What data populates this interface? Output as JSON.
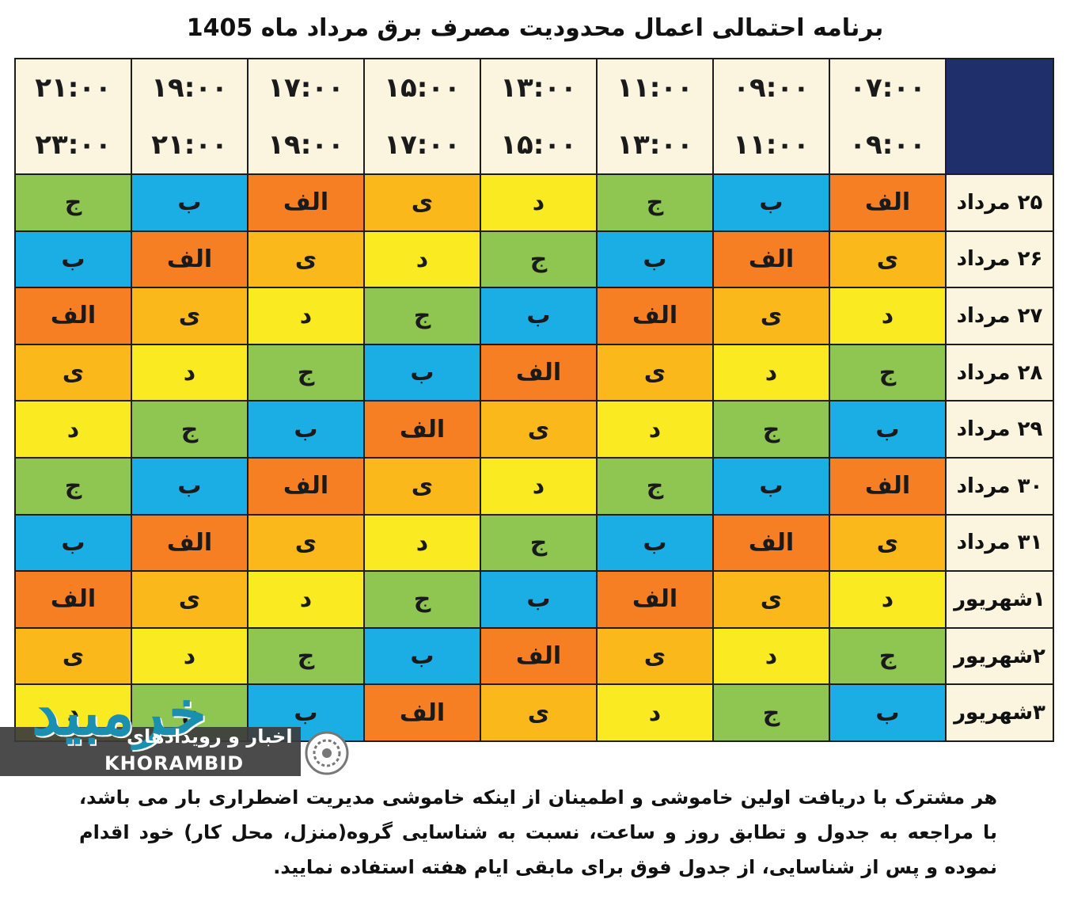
{
  "title": "برنامه احتمالی اعمال محدودیت مصرف برق مرداد ماه 1405",
  "colors": {
    "orange": "#f57f22",
    "amber": "#fbb81a",
    "yellow": "#f9ea22",
    "green": "#8fc551",
    "blue": "#1aaee5",
    "header_bg": "#fbf4df",
    "corner": "#1f2f6b"
  },
  "time_slots": [
    {
      "start": "۰۷:۰۰",
      "end": "۰۹:۰۰"
    },
    {
      "start": "۰۹:۰۰",
      "end": "۱۱:۰۰"
    },
    {
      "start": "۱۱:۰۰",
      "end": "۱۳:۰۰"
    },
    {
      "start": "۱۳:۰۰",
      "end": "۱۵:۰۰"
    },
    {
      "start": "۱۵:۰۰",
      "end": "۱۷:۰۰"
    },
    {
      "start": "۱۷:۰۰",
      "end": "۱۹:۰۰"
    },
    {
      "start": "۱۹:۰۰",
      "end": "۲۱:۰۰"
    },
    {
      "start": "۲۱:۰۰",
      "end": "۲۳:۰۰"
    }
  ],
  "rows": [
    {
      "day": "۲۵ مرداد",
      "cells": [
        {
          "g": "الف",
          "c": "orange"
        },
        {
          "g": "ب",
          "c": "blue"
        },
        {
          "g": "ج",
          "c": "green"
        },
        {
          "g": "د",
          "c": "yellow"
        },
        {
          "g": "ی",
          "c": "amber"
        },
        {
          "g": "الف",
          "c": "orange"
        },
        {
          "g": "ب",
          "c": "blue"
        },
        {
          "g": "ج",
          "c": "green"
        }
      ]
    },
    {
      "day": "۲۶ مرداد",
      "cells": [
        {
          "g": "ی",
          "c": "amber"
        },
        {
          "g": "الف",
          "c": "orange"
        },
        {
          "g": "ب",
          "c": "blue"
        },
        {
          "g": "ج",
          "c": "green"
        },
        {
          "g": "د",
          "c": "yellow"
        },
        {
          "g": "ی",
          "c": "amber"
        },
        {
          "g": "الف",
          "c": "orange"
        },
        {
          "g": "ب",
          "c": "blue"
        }
      ]
    },
    {
      "day": "۲۷ مرداد",
      "cells": [
        {
          "g": "د",
          "c": "yellow"
        },
        {
          "g": "ی",
          "c": "amber"
        },
        {
          "g": "الف",
          "c": "orange"
        },
        {
          "g": "ب",
          "c": "blue"
        },
        {
          "g": "ج",
          "c": "green"
        },
        {
          "g": "د",
          "c": "yellow"
        },
        {
          "g": "ی",
          "c": "amber"
        },
        {
          "g": "الف",
          "c": "orange"
        }
      ]
    },
    {
      "day": "۲۸ مرداد",
      "cells": [
        {
          "g": "ج",
          "c": "green"
        },
        {
          "g": "د",
          "c": "yellow"
        },
        {
          "g": "ی",
          "c": "amber"
        },
        {
          "g": "الف",
          "c": "orange"
        },
        {
          "g": "ب",
          "c": "blue"
        },
        {
          "g": "ج",
          "c": "green"
        },
        {
          "g": "د",
          "c": "yellow"
        },
        {
          "g": "ی",
          "c": "amber"
        }
      ]
    },
    {
      "day": "۲۹ مرداد",
      "cells": [
        {
          "g": "ب",
          "c": "blue"
        },
        {
          "g": "ج",
          "c": "green"
        },
        {
          "g": "د",
          "c": "yellow"
        },
        {
          "g": "ی",
          "c": "amber"
        },
        {
          "g": "الف",
          "c": "orange"
        },
        {
          "g": "ب",
          "c": "blue"
        },
        {
          "g": "ج",
          "c": "green"
        },
        {
          "g": "د",
          "c": "yellow"
        }
      ]
    },
    {
      "day": "۳۰ مرداد",
      "cells": [
        {
          "g": "الف",
          "c": "orange"
        },
        {
          "g": "ب",
          "c": "blue"
        },
        {
          "g": "ج",
          "c": "green"
        },
        {
          "g": "د",
          "c": "yellow"
        },
        {
          "g": "ی",
          "c": "amber"
        },
        {
          "g": "الف",
          "c": "orange"
        },
        {
          "g": "ب",
          "c": "blue"
        },
        {
          "g": "ج",
          "c": "green"
        }
      ]
    },
    {
      "day": "۳۱ مرداد",
      "cells": [
        {
          "g": "ی",
          "c": "amber"
        },
        {
          "g": "الف",
          "c": "orange"
        },
        {
          "g": "ب",
          "c": "blue"
        },
        {
          "g": "ج",
          "c": "green"
        },
        {
          "g": "د",
          "c": "yellow"
        },
        {
          "g": "ی",
          "c": "amber"
        },
        {
          "g": "الف",
          "c": "orange"
        },
        {
          "g": "ب",
          "c": "blue"
        }
      ]
    },
    {
      "day": "۱شهریور",
      "cells": [
        {
          "g": "د",
          "c": "yellow"
        },
        {
          "g": "ی",
          "c": "amber"
        },
        {
          "g": "الف",
          "c": "orange"
        },
        {
          "g": "ب",
          "c": "blue"
        },
        {
          "g": "ج",
          "c": "green"
        },
        {
          "g": "د",
          "c": "yellow"
        },
        {
          "g": "ی",
          "c": "amber"
        },
        {
          "g": "الف",
          "c": "orange"
        }
      ]
    },
    {
      "day": "۲شهریور",
      "cells": [
        {
          "g": "ج",
          "c": "green"
        },
        {
          "g": "د",
          "c": "yellow"
        },
        {
          "g": "ی",
          "c": "amber"
        },
        {
          "g": "الف",
          "c": "orange"
        },
        {
          "g": "ب",
          "c": "blue"
        },
        {
          "g": "ج",
          "c": "green"
        },
        {
          "g": "د",
          "c": "yellow"
        },
        {
          "g": "ی",
          "c": "amber"
        }
      ]
    },
    {
      "day": "۳شهریور",
      "cells": [
        {
          "g": "ب",
          "c": "blue"
        },
        {
          "g": "ج",
          "c": "green"
        },
        {
          "g": "د",
          "c": "yellow"
        },
        {
          "g": "ی",
          "c": "amber"
        },
        {
          "g": "الف",
          "c": "orange"
        },
        {
          "g": "ب",
          "c": "blue"
        },
        {
          "g": "ج",
          "c": "green"
        },
        {
          "g": "د",
          "c": "yellow"
        }
      ]
    }
  ],
  "note": "هر مشترک با دریافت اولین خاموشی و اطمینان از اینکه خاموشی مدیریت اضطراری بار می باشد، با مراجعه به جدول و تطابق روز و ساعت، نسبت به شناسایی گروه(منزل، محل کار) خود اقدام نموده و پس از شناسایی، از جدول فوق برای مابقی ایام هفته استفاده نمایید.",
  "watermark": {
    "persian_script": "خرمبید",
    "tagline": "اخبار و رویدادهای",
    "latin": "KHORAMBID"
  }
}
